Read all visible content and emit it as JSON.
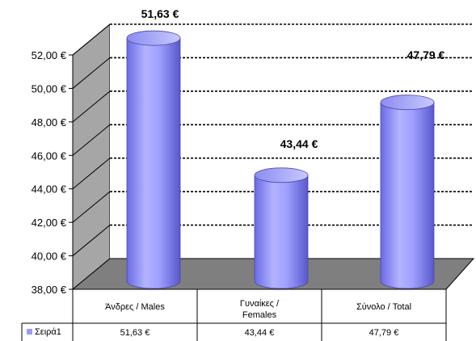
{
  "chart_data": {
    "type": "bar",
    "style": "3d-cylinder",
    "categories": [
      "Άνδρες / Males",
      "Γυναίκες / Females",
      "Σύνολο / Total"
    ],
    "series": [
      {
        "name": "Σειρά1",
        "values": [
          51.63,
          43.44,
          47.79
        ],
        "color": "#9b9bff"
      }
    ],
    "data_labels": [
      "51,63 €",
      "43,44 €",
      "47,79 €"
    ],
    "table_values": [
      "51,63 €",
      "43,44 €",
      "47,79 €"
    ],
    "y_ticks": [
      "38,00 €",
      "40,00 €",
      "42,00 €",
      "44,00 €",
      "46,00 €",
      "48,00 €",
      "50,00 €",
      "52,00 €"
    ],
    "ylim": [
      38,
      52
    ],
    "grid": true,
    "legend": "data-table",
    "colors": {
      "wall": "#c0c0c0",
      "floor": "#808080",
      "bar": "#9b9bff"
    }
  }
}
